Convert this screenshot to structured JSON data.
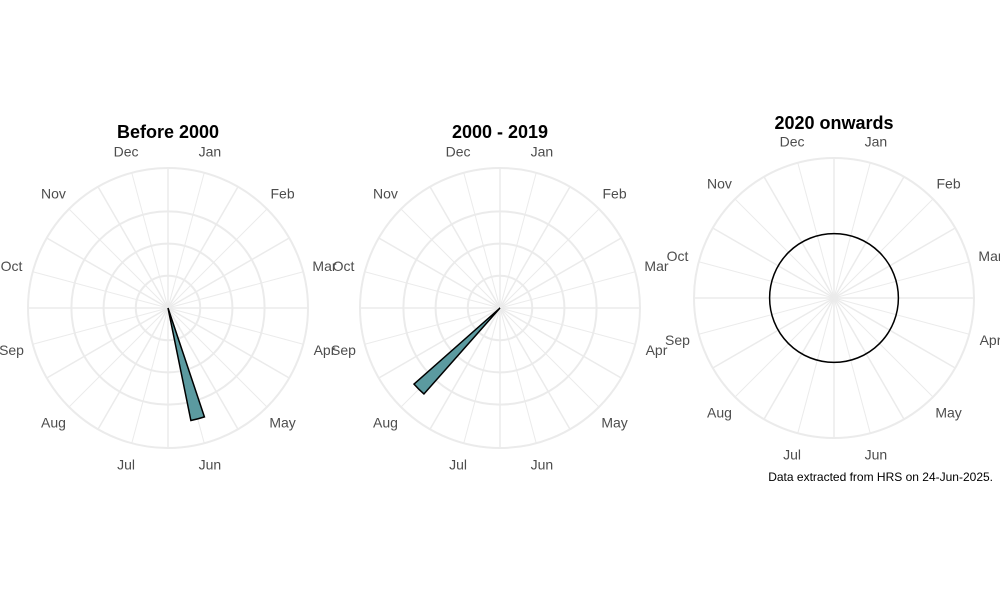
{
  "caption": "Data extracted from HRS on 24-Jun-2025.",
  "colors": {
    "fill": "#5b9aa0",
    "grid": "#ebebeb",
    "outline": "#000000",
    "label": "#4d4d4d"
  },
  "chart_data": [
    {
      "type": "polar-bar",
      "title": "Before 2000",
      "months": [
        "Jan",
        "Feb",
        "Mar",
        "Apr",
        "May",
        "Jun",
        "Jul",
        "Aug",
        "Sep",
        "Oct",
        "Nov",
        "Dec"
      ],
      "values": [
        0,
        0,
        0,
        0,
        0,
        1,
        0,
        0,
        0,
        0,
        0,
        0
      ]
    },
    {
      "type": "polar-bar",
      "title": "2000 - 2019",
      "months": [
        "Jan",
        "Feb",
        "Mar",
        "Apr",
        "May",
        "Jun",
        "Jul",
        "Aug",
        "Sep",
        "Oct",
        "Nov",
        "Dec"
      ],
      "values": [
        0,
        0,
        0,
        0,
        0,
        0,
        0,
        1,
        0,
        0,
        0,
        0
      ]
    },
    {
      "type": "polar-bar",
      "title": "2020 onwards",
      "months": [
        "Jan",
        "Feb",
        "Mar",
        "Apr",
        "May",
        "Jun",
        "Jul",
        "Aug",
        "Sep",
        "Oct",
        "Nov",
        "Dec"
      ],
      "values": [
        0,
        0,
        0,
        0,
        0,
        0,
        0,
        0,
        0,
        0,
        0,
        0
      ]
    }
  ]
}
